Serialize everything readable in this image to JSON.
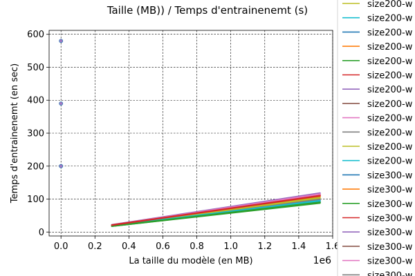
{
  "chart_data": {
    "type": "line",
    "title": "Taille (MB)) / Temps d'entrainenemt (s)",
    "xlabel": "La taille du modèle (en MB)",
    "ylabel": "Temps d'entrainenemt (en sec)",
    "x_offset_label": "1e6",
    "xlim": [
      -70000,
      1600000
    ],
    "ylim": [
      -12,
      612
    ],
    "x_ticks": [
      0,
      200000,
      400000,
      600000,
      800000,
      1000000,
      1200000,
      1400000,
      1600000
    ],
    "x_tick_labels": [
      "0.0",
      "0.2",
      "0.4",
      "0.6",
      "0.8",
      "1.0",
      "1.2",
      "1.4",
      "1.6"
    ],
    "y_ticks": [
      0,
      100,
      200,
      300,
      400,
      500,
      600
    ],
    "y_tick_labels": [
      "0",
      "100",
      "200",
      "300",
      "400",
      "500",
      "600"
    ],
    "grid": true,
    "legend": {
      "placement": "right (cut off)",
      "entries": [
        {
          "label": "size200-w",
          "color": "#bcbd22"
        },
        {
          "label": "size200-w",
          "color": "#17becf"
        },
        {
          "label": "size200-w",
          "color": "#1f77b4"
        },
        {
          "label": "size200-w",
          "color": "#ff7f0e"
        },
        {
          "label": "size200-w",
          "color": "#2ca02c"
        },
        {
          "label": "size200-w",
          "color": "#d62728"
        },
        {
          "label": "size200-w",
          "color": "#9467bd"
        },
        {
          "label": "size200-w",
          "color": "#8c564b"
        },
        {
          "label": "size200-w",
          "color": "#e377c2"
        },
        {
          "label": "size200-w",
          "color": "#7f7f7f"
        },
        {
          "label": "size200-w",
          "color": "#bcbd22"
        },
        {
          "label": "size200-w",
          "color": "#17becf"
        },
        {
          "label": "size300-w",
          "color": "#1f77b4"
        },
        {
          "label": "size300-w",
          "color": "#ff7f0e"
        },
        {
          "label": "size300-w",
          "color": "#2ca02c"
        },
        {
          "label": "size300-w",
          "color": "#d62728"
        },
        {
          "label": "size300-w",
          "color": "#9467bd"
        },
        {
          "label": "size300-w",
          "color": "#8c564b"
        },
        {
          "label": "size300-w",
          "color": "#e377c2"
        },
        {
          "label": "size300-w",
          "color": "#7f7f7f"
        }
      ]
    },
    "series": [
      {
        "color": "#1f77b4",
        "x": [
          300000,
          1525000
        ],
        "y": [
          19,
          92
        ]
      },
      {
        "color": "#ff7f0e",
        "x": [
          300000,
          1525000
        ],
        "y": [
          20,
          108
        ]
      },
      {
        "color": "#2ca02c",
        "x": [
          300000,
          1525000
        ],
        "y": [
          18,
          88
        ]
      },
      {
        "color": "#d62728",
        "x": [
          300000,
          1525000
        ],
        "y": [
          21,
          112
        ]
      },
      {
        "color": "#9467bd",
        "x": [
          300000,
          1525000
        ],
        "y": [
          22,
          118
        ]
      },
      {
        "color": "#8c564b",
        "x": [
          300000,
          1525000
        ],
        "y": [
          19,
          96
        ]
      },
      {
        "color": "#e377c2",
        "x": [
          300000,
          1525000
        ],
        "y": [
          21,
          115
        ]
      },
      {
        "color": "#7f7f7f",
        "x": [
          300000,
          1525000
        ],
        "y": [
          20,
          100
        ]
      },
      {
        "color": "#bcbd22",
        "x": [
          300000,
          1525000
        ],
        "y": [
          20,
          104
        ]
      },
      {
        "color": "#17becf",
        "x": [
          300000,
          1525000
        ],
        "y": [
          19,
          95
        ]
      },
      {
        "color": "#2ca02c",
        "x": [
          300000,
          1525000
        ],
        "y": [
          18,
          90
        ]
      },
      {
        "color": "#d62728",
        "x": [
          300000,
          1525000
        ],
        "y": [
          21,
          110
        ]
      }
    ],
    "points": [
      {
        "x": 0,
        "y": 580,
        "color": "#9467bd"
      },
      {
        "x": 0,
        "y": 390,
        "color": "#9467bd"
      },
      {
        "x": 0,
        "y": 200,
        "color": "#9467bd"
      }
    ]
  }
}
